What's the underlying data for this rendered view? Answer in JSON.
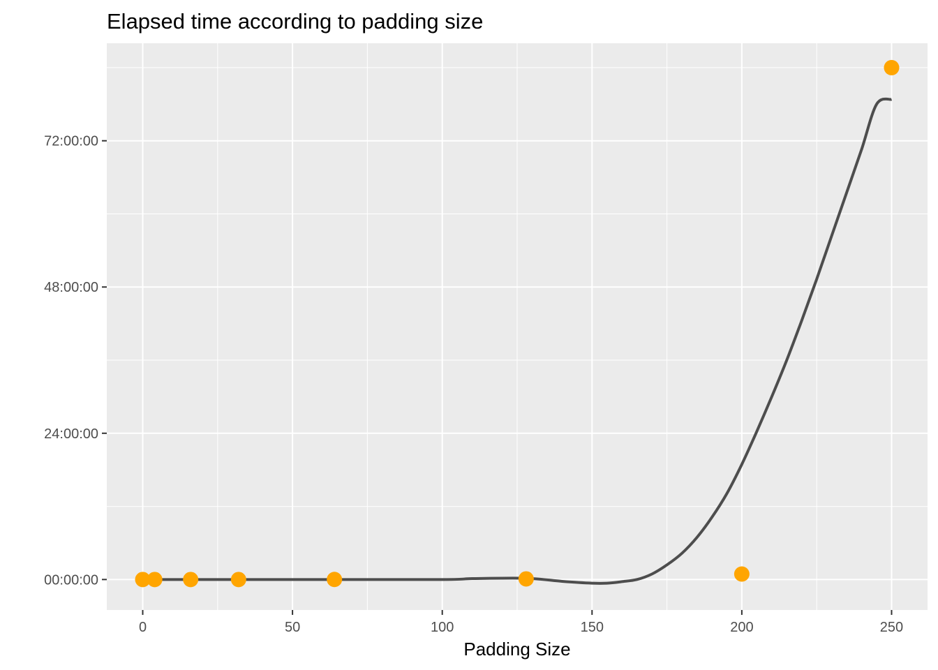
{
  "chart_data": {
    "type": "scatter",
    "title": "Elapsed time according to padding size",
    "xlabel": "Padding Size",
    "ylabel": "",
    "xlim": [
      -12.0,
      262.0
    ],
    "ylim": [
      -5.0,
      88.0
    ],
    "x_ticks": [
      0,
      50,
      100,
      150,
      200,
      250
    ],
    "x_tick_labels": [
      "0",
      "50",
      "100",
      "150",
      "200",
      "250"
    ],
    "y_ticks": [
      0,
      24,
      48,
      72
    ],
    "y_tick_labels": [
      "00:00:00",
      "24:00:00",
      "48:00:00",
      "72:00:00"
    ],
    "y_unit": "hours",
    "grid": true,
    "legend": "none",
    "point_color": "#FFA500",
    "line_color": "#4D4D4D",
    "panel_color": "#EBEBEB",
    "series": [
      {
        "type": "points",
        "x": [
          0,
          4,
          16,
          32,
          64,
          128,
          200,
          250
        ],
        "y": [
          0.0,
          0.0,
          0.0,
          0.0,
          0.01,
          0.1,
          0.9,
          84.0
        ]
      },
      {
        "type": "smooth-line",
        "x": [
          0,
          50,
          100,
          110,
          128,
          140,
          150,
          155,
          160,
          165,
          170,
          175,
          180,
          185,
          190,
          195,
          200,
          205,
          210,
          215,
          220,
          225,
          230,
          235,
          240,
          245,
          250
        ],
        "y": [
          0,
          0,
          0,
          0.15,
          0.2,
          -0.3,
          -0.6,
          -0.6,
          -0.35,
          0.0,
          0.9,
          2.4,
          4.3,
          6.9,
          10.2,
          14.1,
          18.9,
          24.3,
          30.0,
          36.0,
          42.5,
          49.3,
          56.4,
          63.5,
          70.6,
          78.0,
          78.8
        ]
      }
    ]
  }
}
